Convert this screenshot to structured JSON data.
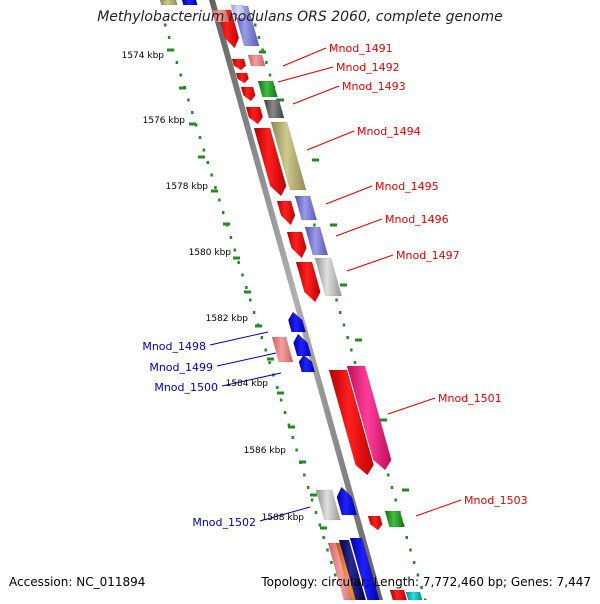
{
  "title": "Methylobacterium nodulans ORS 2060, complete genome",
  "accession": "Accession: NC_011894",
  "topology": "Topology: circular; Length: 7,772,460 bp; Genes: 7,447",
  "colors": {
    "label_right": "#e00000",
    "label_left": "#0000bb",
    "backbone": "#808080",
    "dots": "#228b22"
  },
  "kbp_ticks": [
    "1574 kbp",
    "1576 kbp",
    "1578 kbp",
    "1580 kbp",
    "1582 kbp",
    "1584 kbp",
    "1586 kbp",
    "1588 kbp"
  ],
  "genes_right": [
    {
      "label": "Mnod_1491"
    },
    {
      "label": "Mnod_1492"
    },
    {
      "label": "Mnod_1493"
    },
    {
      "label": "Mnod_1494"
    },
    {
      "label": "Mnod_1495"
    },
    {
      "label": "Mnod_1496"
    },
    {
      "label": "Mnod_1497"
    },
    {
      "label": "Mnod_1501"
    },
    {
      "label": "Mnod_1503"
    }
  ],
  "genes_left": [
    {
      "label": "Mnod_1498"
    },
    {
      "label": "Mnod_1499"
    },
    {
      "label": "Mnod_1500"
    },
    {
      "label": "Mnod_1502"
    }
  ]
}
